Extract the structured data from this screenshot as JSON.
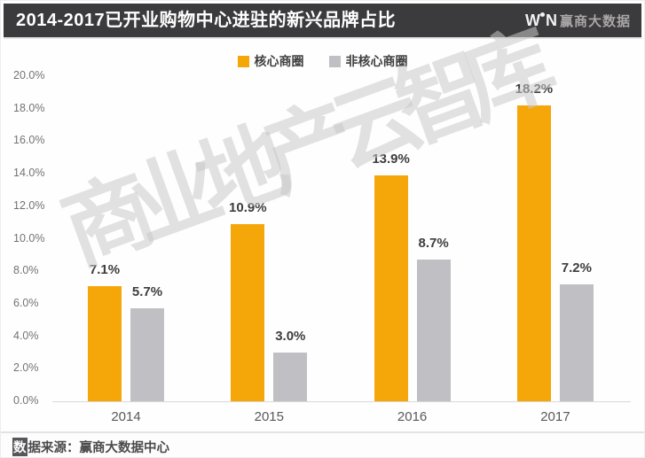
{
  "header": {
    "title": "2014-2017已开业购物中心进驻的新兴品牌占比",
    "logo": {
      "win_left": "W",
      "win_right": "N",
      "cn": "赢商大数据"
    }
  },
  "watermark": "商业地产云智库",
  "footer": {
    "highlight_char": "数",
    "rest": "据来源：赢商大数据中心"
  },
  "colors": {
    "header_bg": "#3b3a3c",
    "core_series": "#F5A70A",
    "non_core_series": "#C0BFC3",
    "axis_line": "#d9d9d9",
    "tick_text": "#737373",
    "value_text": "#3d3d3d",
    "watermark_text": "rgba(201,201,201,0.55)"
  },
  "chart_data": {
    "type": "bar",
    "title": "2014-2017已开业购物中心进驻的新兴品牌占比",
    "categories": [
      "2014",
      "2015",
      "2016",
      "2017"
    ],
    "series": [
      {
        "name": "核心商圈",
        "color": "#F5A70A",
        "values": [
          7.1,
          10.9,
          13.9,
          18.2
        ]
      },
      {
        "name": "非核心商圈",
        "color": "#C0BFC3",
        "values": [
          5.7,
          3.0,
          8.7,
          7.2
        ]
      }
    ],
    "value_suffix": "%",
    "value_decimals": 1,
    "ylim": [
      0,
      20
    ],
    "ytick_step": 2,
    "ytick_labels": [
      "0.0%",
      "2.0%",
      "4.0%",
      "6.0%",
      "8.0%",
      "10.0%",
      "12.0%",
      "14.0%",
      "16.0%",
      "18.0%",
      "20.0%"
    ],
    "grid": false,
    "legend_position": "top-center",
    "data_labels": true
  }
}
